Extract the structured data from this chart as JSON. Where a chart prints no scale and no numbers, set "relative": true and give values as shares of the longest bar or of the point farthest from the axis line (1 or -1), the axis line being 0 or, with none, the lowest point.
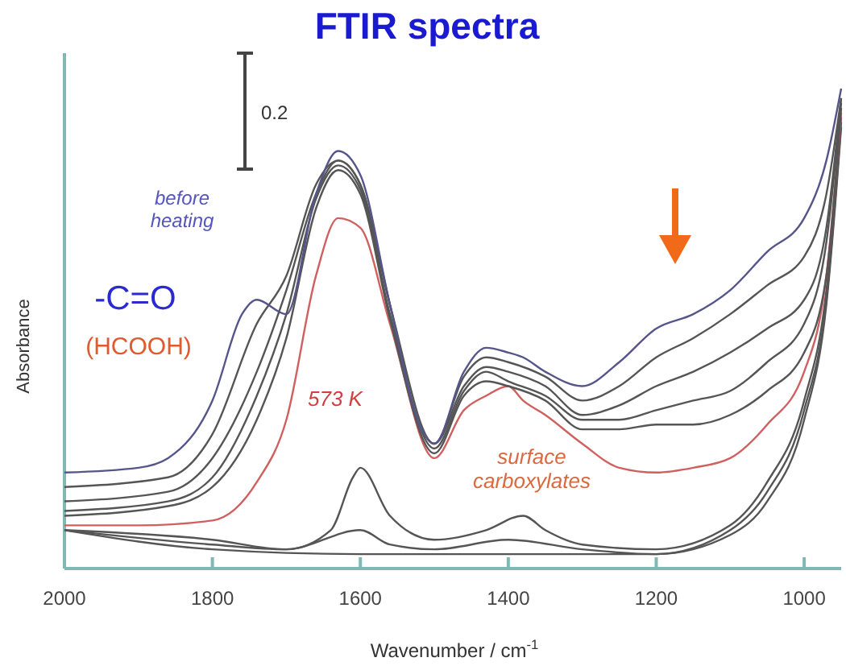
{
  "chart_data": {
    "type": "line",
    "title": "FTIR spectra",
    "xlabel": "Wavenumber / cm$^{-1}$",
    "ylabel": "Absorbance",
    "relative": true,
    "xlim": [
      2000,
      950
    ],
    "xticks": [
      2000,
      1800,
      1600,
      1400,
      1200,
      1000
    ],
    "grid": false,
    "marker": "none",
    "line_style": "solid",
    "annotations": [
      "0.2",
      "before heating",
      "-C=O",
      "(HCOOH)",
      "573 K",
      "surface carboxylates"
    ],
    "series": [
      {
        "color": "#55558a",
        "x": [
          2000,
          1900,
          1860,
          1800,
          1760,
          1740,
          1700,
          1660,
          1630,
          1600,
          1560,
          1520,
          1500,
          1460,
          1430,
          1400,
          1380,
          1350,
          1300,
          1250,
          1200,
          1150,
          1100,
          1050,
          1000,
          970,
          950
        ],
        "values": [
          0.2,
          0.21,
          0.23,
          0.35,
          0.53,
          0.56,
          0.53,
          0.78,
          0.87,
          0.82,
          0.55,
          0.3,
          0.26,
          0.41,
          0.46,
          0.45,
          0.44,
          0.41,
          0.38,
          0.43,
          0.5,
          0.53,
          0.58,
          0.66,
          0.73,
          0.85,
          1
        ]
      },
      {
        "color": "#555555",
        "x": [
          2000,
          1860,
          1800,
          1740,
          1700,
          1660,
          1630,
          1600,
          1560,
          1520,
          1500,
          1460,
          1430,
          1400,
          1350,
          1300,
          1250,
          1200,
          1150,
          1100,
          1050,
          1000,
          970,
          950
        ],
        "values": [
          0.17,
          0.19,
          0.28,
          0.51,
          0.61,
          0.8,
          0.85,
          0.8,
          0.55,
          0.3,
          0.26,
          0.4,
          0.44,
          0.43,
          0.4,
          0.35,
          0.38,
          0.44,
          0.48,
          0.53,
          0.59,
          0.65,
          0.78,
          0.98
        ]
      },
      {
        "color": "#555555",
        "x": [
          2000,
          1860,
          1800,
          1740,
          1700,
          1660,
          1630,
          1600,
          1560,
          1500,
          1460,
          1430,
          1400,
          1350,
          1300,
          1250,
          1200,
          1150,
          1100,
          1050,
          1000,
          970,
          950
        ],
        "values": [
          0.14,
          0.16,
          0.23,
          0.41,
          0.58,
          0.78,
          0.85,
          0.8,
          0.55,
          0.26,
          0.38,
          0.42,
          0.41,
          0.38,
          0.32,
          0.34,
          0.38,
          0.41,
          0.45,
          0.5,
          0.56,
          0.71,
          0.98
        ]
      },
      {
        "color": "#555555",
        "x": [
          2000,
          1860,
          1800,
          1740,
          1700,
          1660,
          1630,
          1600,
          1560,
          1500,
          1460,
          1430,
          1400,
          1350,
          1300,
          1250,
          1200,
          1150,
          1100,
          1050,
          1000,
          970,
          950
        ],
        "values": [
          0.12,
          0.14,
          0.19,
          0.36,
          0.53,
          0.77,
          0.84,
          0.79,
          0.53,
          0.25,
          0.37,
          0.41,
          0.39,
          0.36,
          0.31,
          0.31,
          0.33,
          0.35,
          0.37,
          0.43,
          0.51,
          0.68,
          0.97
        ]
      },
      {
        "color": "#555555",
        "x": [
          2000,
          1860,
          1800,
          1740,
          1700,
          1660,
          1630,
          1600,
          1560,
          1500,
          1460,
          1430,
          1400,
          1350,
          1300,
          1250,
          1200,
          1150,
          1100,
          1050,
          1000,
          970,
          950
        ],
        "values": [
          0.11,
          0.13,
          0.17,
          0.31,
          0.48,
          0.75,
          0.83,
          0.78,
          0.52,
          0.24,
          0.36,
          0.39,
          0.38,
          0.35,
          0.29,
          0.29,
          0.3,
          0.3,
          0.32,
          0.37,
          0.45,
          0.61,
          0.96
        ]
      },
      {
        "color": "#d06060",
        "x": [
          2000,
          1900,
          1800,
          1740,
          1700,
          1660,
          1630,
          1600,
          1560,
          1500,
          1460,
          1430,
          1400,
          1380,
          1350,
          1300,
          1250,
          1200,
          1150,
          1100,
          1050,
          1000,
          970,
          950
        ],
        "values": [
          0.09,
          0.09,
          0.1,
          0.18,
          0.31,
          0.61,
          0.73,
          0.71,
          0.51,
          0.23,
          0.33,
          0.36,
          0.38,
          0.35,
          0.32,
          0.26,
          0.21,
          0.2,
          0.21,
          0.23,
          0.3,
          0.41,
          0.61,
          0.95
        ]
      },
      {
        "color": "#555555",
        "x": [
          2000,
          1800,
          1700,
          1640,
          1610,
          1600,
          1560,
          1500,
          1430,
          1380,
          1350,
          1300,
          1200,
          1100,
          1050,
          1000,
          970,
          950
        ],
        "values": [
          0.08,
          0.06,
          0.04,
          0.08,
          0.19,
          0.21,
          0.11,
          0.06,
          0.08,
          0.11,
          0.08,
          0.05,
          0.04,
          0.09,
          0.18,
          0.35,
          0.58,
          0.94
        ]
      },
      {
        "color": "#555555",
        "x": [
          2000,
          1800,
          1700,
          1600,
          1560,
          1500,
          1400,
          1300,
          1200,
          1100,
          1050,
          1000,
          970,
          950
        ],
        "values": [
          0.08,
          0.05,
          0.04,
          0.08,
          0.05,
          0.04,
          0.06,
          0.04,
          0.03,
          0.08,
          0.16,
          0.33,
          0.56,
          0.93
        ]
      },
      {
        "color": "#555555",
        "x": [
          2000,
          1800,
          1600,
          1400,
          1200,
          1100,
          1050,
          1000,
          970,
          950
        ],
        "values": [
          0.08,
          0.04,
          0.03,
          0.03,
          0.03,
          0.07,
          0.14,
          0.31,
          0.55,
          0.92
        ]
      }
    ]
  }
}
